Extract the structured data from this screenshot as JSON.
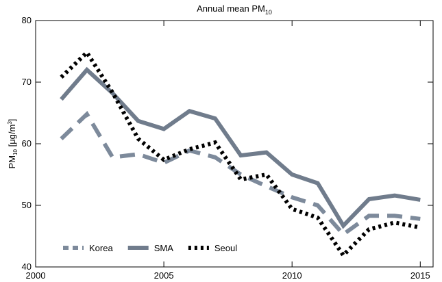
{
  "chart_data": {
    "type": "line",
    "title": {
      "text": "Annual mean PM",
      "sub": "10"
    },
    "ylabel": {
      "text": "PM",
      "sub": "10",
      "unit": " [μg/m",
      "sup": "3",
      "end": "]"
    },
    "x": [
      2001,
      2002,
      2003,
      2004,
      2005,
      2006,
      2007,
      2008,
      2009,
      2010,
      2011,
      2012,
      2013,
      2014,
      2015
    ],
    "series": [
      {
        "name": "Korea",
        "color": "#7d8a9b",
        "style": "dashed",
        "values": [
          60.8,
          64.8,
          57.8,
          58.3,
          56.9,
          58.9,
          57.8,
          55.0,
          53.1,
          51.3,
          50.0,
          45.3,
          48.3,
          48.3,
          47.8
        ]
      },
      {
        "name": "SMA",
        "color": "#707c8c",
        "style": "solid",
        "values": [
          67.2,
          72.0,
          68.2,
          63.7,
          62.4,
          65.3,
          64.1,
          58.1,
          58.6,
          55.0,
          53.6,
          46.7,
          51.0,
          51.6,
          50.9
        ]
      },
      {
        "name": "Seoul",
        "color": "#000000",
        "style": "dotted",
        "values": [
          70.8,
          74.8,
          68.3,
          60.8,
          57.4,
          59.1,
          60.2,
          54.2,
          55.0,
          49.4,
          48.0,
          41.9,
          46.1,
          47.2,
          46.4
        ]
      }
    ],
    "xlim": [
      2000,
      2015.5
    ],
    "xticks": [
      2000,
      2005,
      2010,
      2015
    ],
    "ylim": [
      40,
      80
    ],
    "yticks": [
      40,
      50,
      60,
      70,
      80
    ],
    "legend": "lower left"
  }
}
